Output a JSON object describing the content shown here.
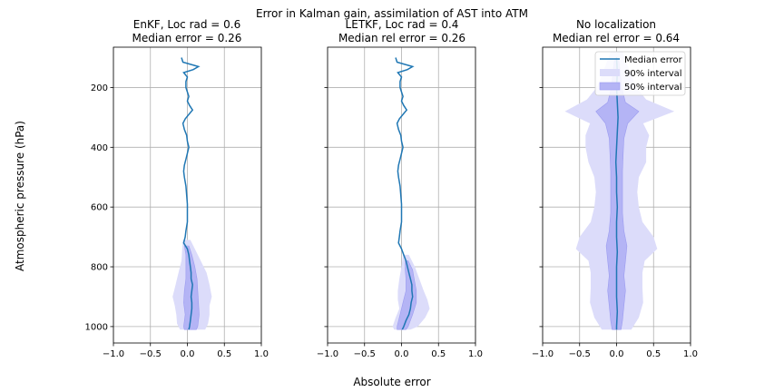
{
  "figure": {
    "suptitle": "Error in Kalman gain, assimilation of AST into ATM",
    "xlabel": "Absolute error",
    "ylabel": "Atmospheric pressure (hPa)"
  },
  "legend": {
    "placement": "top-right of third panel",
    "entries": [
      "Median error",
      "90% interval",
      "50% interval"
    ]
  },
  "colors": {
    "median_line": "#1f77b4",
    "interval_90": "#dcdcfa",
    "interval_50": "#b4b4f5",
    "interval_50_edge": "#9b9bf0"
  },
  "chart_data": [
    {
      "type": "area",
      "title_line1": "EnKF, Loc rad = 0.6",
      "title_line2": "Median error = 0.26",
      "xlim": [
        -1.0,
        1.0
      ],
      "ylim": [
        1055,
        65
      ],
      "y_inverted": true,
      "grid": true,
      "xticks": [
        -1.0,
        -0.5,
        0.0,
        0.5,
        1.0
      ],
      "xtick_labels": [
        "−1.0",
        "−0.5",
        "0.0",
        "0.5",
        "1.0"
      ],
      "yticks": [
        200,
        400,
        600,
        800,
        1000
      ],
      "ytick_labels": [
        "200",
        "400",
        "600",
        "800",
        "1000"
      ],
      "show_ytick_labels": true,
      "series": [
        {
          "name": "Median error",
          "pressure": [
            100,
            115,
            130,
            140,
            150,
            165,
            180,
            200,
            215,
            230,
            245,
            260,
            275,
            290,
            305,
            320,
            340,
            360,
            380,
            400,
            420,
            440,
            460,
            480,
            500,
            530,
            560,
            590,
            620,
            650,
            680,
            700,
            720,
            740,
            760,
            780,
            800,
            820,
            840,
            860,
            880,
            900,
            920,
            940,
            960,
            980,
            1000,
            1010
          ],
          "value": [
            -0.08,
            -0.06,
            0.15,
            0.08,
            -0.05,
            0.0,
            -0.02,
            -0.02,
            0.0,
            0.02,
            0.0,
            0.03,
            0.07,
            0.02,
            -0.03,
            -0.06,
            -0.04,
            -0.01,
            0.0,
            0.02,
            0.0,
            -0.02,
            -0.04,
            -0.05,
            -0.04,
            -0.02,
            -0.01,
            0.0,
            0.0,
            0.0,
            -0.02,
            -0.03,
            -0.05,
            0.0,
            0.02,
            0.03,
            0.04,
            0.05,
            0.05,
            0.07,
            0.06,
            0.05,
            0.06,
            0.06,
            0.05,
            0.04,
            0.03,
            0.02
          ]
        },
        {
          "name": "50% interval",
          "pressure": [
            730,
            760,
            800,
            840,
            880,
            920,
            960,
            1000,
            1010
          ],
          "lower": [
            -0.04,
            -0.02,
            -0.02,
            -0.02,
            -0.04,
            -0.05,
            -0.03,
            -0.05,
            -0.04
          ],
          "upper": [
            0.02,
            0.06,
            0.1,
            0.13,
            0.14,
            0.15,
            0.16,
            0.14,
            0.12
          ]
        },
        {
          "name": "90% interval",
          "pressure": [
            710,
            740,
            780,
            820,
            860,
            900,
            930,
            960,
            990,
            1010
          ],
          "lower": [
            -0.06,
            -0.07,
            -0.08,
            -0.12,
            -0.16,
            -0.2,
            -0.17,
            -0.15,
            -0.14,
            -0.1
          ],
          "upper": [
            0.04,
            0.1,
            0.18,
            0.26,
            0.3,
            0.33,
            0.3,
            0.3,
            0.28,
            0.24
          ]
        }
      ]
    },
    {
      "type": "area",
      "title_line1": "LETKF, Loc rad = 0.4",
      "title_line2": "Median rel error = 0.26",
      "xlim": [
        -1.0,
        1.0
      ],
      "ylim": [
        1055,
        65
      ],
      "y_inverted": true,
      "grid": true,
      "xticks": [
        -1.0,
        -0.5,
        0.0,
        0.5,
        1.0
      ],
      "xtick_labels": [
        "−1.0",
        "−0.5",
        "0.0",
        "0.5",
        "1.0"
      ],
      "yticks": [
        200,
        400,
        600,
        800,
        1000
      ],
      "ytick_labels": [
        "200",
        "400",
        "600",
        "800",
        "1000"
      ],
      "show_ytick_labels": false,
      "series": [
        {
          "name": "Median error",
          "pressure": [
            100,
            115,
            130,
            140,
            150,
            165,
            180,
            200,
            215,
            230,
            245,
            260,
            275,
            290,
            305,
            320,
            340,
            360,
            380,
            400,
            420,
            440,
            460,
            480,
            500,
            530,
            560,
            590,
            620,
            650,
            680,
            700,
            720,
            740,
            760,
            780,
            800,
            820,
            840,
            860,
            880,
            900,
            920,
            940,
            960,
            980,
            1000,
            1010
          ],
          "value": [
            -0.08,
            -0.06,
            0.15,
            0.08,
            -0.05,
            0.0,
            -0.02,
            -0.02,
            0.0,
            0.02,
            0.0,
            0.03,
            0.07,
            0.02,
            -0.03,
            -0.06,
            -0.04,
            -0.01,
            0.0,
            0.02,
            0.0,
            -0.02,
            -0.04,
            -0.05,
            -0.04,
            -0.02,
            -0.01,
            0.0,
            0.0,
            0.0,
            -0.02,
            -0.03,
            -0.04,
            0.0,
            0.03,
            0.06,
            0.08,
            0.1,
            0.12,
            0.14,
            0.14,
            0.15,
            0.13,
            0.12,
            0.1,
            0.06,
            0.03,
            0.01
          ]
        },
        {
          "name": "50% interval",
          "pressure": [
            780,
            810,
            840,
            880,
            920,
            960,
            1000,
            1010
          ],
          "lower": [
            0.05,
            0.05,
            0.06,
            0.06,
            0.02,
            -0.02,
            -0.06,
            -0.06
          ],
          "upper": [
            0.09,
            0.15,
            0.17,
            0.2,
            0.2,
            0.15,
            0.09,
            0.06
          ]
        },
        {
          "name": "90% interval",
          "pressure": [
            760,
            800,
            840,
            880,
            910,
            940,
            970,
            1000,
            1010
          ],
          "lower": [
            0.02,
            0.0,
            -0.03,
            -0.05,
            -0.05,
            -0.03,
            -0.08,
            -0.12,
            -0.1
          ],
          "upper": [
            0.1,
            0.18,
            0.24,
            0.3,
            0.35,
            0.38,
            0.32,
            0.22,
            0.12
          ]
        }
      ]
    },
    {
      "type": "area",
      "title_line1": "No localization",
      "title_line2": "Median rel error = 0.64",
      "xlim": [
        -1.0,
        1.0
      ],
      "ylim": [
        1055,
        65
      ],
      "y_inverted": true,
      "grid": true,
      "xticks": [
        -1.0,
        -0.5,
        0.0,
        0.5,
        1.0
      ],
      "xtick_labels": [
        "−1.0",
        "−0.5",
        "0.0",
        "0.5",
        "1.0"
      ],
      "yticks": [
        200,
        400,
        600,
        800,
        1000
      ],
      "ytick_labels": [
        "200",
        "400",
        "600",
        "800",
        "1000"
      ],
      "show_ytick_labels": false,
      "series": [
        {
          "name": "Median error",
          "pressure": [
            100,
            150,
            200,
            250,
            300,
            350,
            400,
            450,
            500,
            550,
            600,
            650,
            700,
            750,
            800,
            850,
            900,
            950,
            1000,
            1010
          ],
          "value": [
            0.0,
            0.01,
            0.0,
            0.01,
            0.02,
            0.01,
            0.0,
            -0.01,
            0.0,
            0.0,
            0.01,
            0.0,
            0.0,
            0.01,
            0.0,
            0.0,
            0.0,
            0.01,
            0.0,
            0.0
          ]
        },
        {
          "name": "50% interval",
          "pressure": [
            110,
            150,
            200,
            250,
            280,
            320,
            370,
            420,
            480,
            550,
            620,
            680,
            730,
            780,
            830,
            880,
            930,
            980,
            1010
          ],
          "lower": [
            -0.03,
            -0.05,
            -0.07,
            -0.12,
            -0.28,
            -0.15,
            -0.1,
            -0.09,
            -0.08,
            -0.08,
            -0.08,
            -0.1,
            -0.14,
            -0.12,
            -0.1,
            -0.12,
            -0.1,
            -0.08,
            -0.06
          ],
          "upper": [
            0.03,
            0.05,
            0.07,
            0.12,
            0.3,
            0.15,
            0.1,
            0.09,
            0.08,
            0.08,
            0.08,
            0.1,
            0.14,
            0.12,
            0.1,
            0.12,
            0.1,
            0.08,
            0.06
          ]
        },
        {
          "name": "90% interval",
          "pressure": [
            80,
            120,
            160,
            200,
            240,
            280,
            320,
            360,
            400,
            450,
            500,
            550,
            600,
            650,
            700,
            740,
            780,
            820,
            870,
            920,
            970,
            1010
          ],
          "lower": [
            -0.08,
            -0.14,
            -0.2,
            -0.27,
            -0.4,
            -0.7,
            -0.36,
            -0.42,
            -0.42,
            -0.38,
            -0.3,
            -0.28,
            -0.3,
            -0.35,
            -0.5,
            -0.55,
            -0.38,
            -0.35,
            -0.35,
            -0.36,
            -0.3,
            -0.2
          ],
          "upper": [
            0.08,
            0.14,
            0.2,
            0.27,
            0.4,
            0.78,
            0.36,
            0.44,
            0.4,
            0.4,
            0.3,
            0.28,
            0.3,
            0.35,
            0.5,
            0.55,
            0.38,
            0.35,
            0.35,
            0.36,
            0.3,
            0.2
          ]
        }
      ]
    }
  ]
}
